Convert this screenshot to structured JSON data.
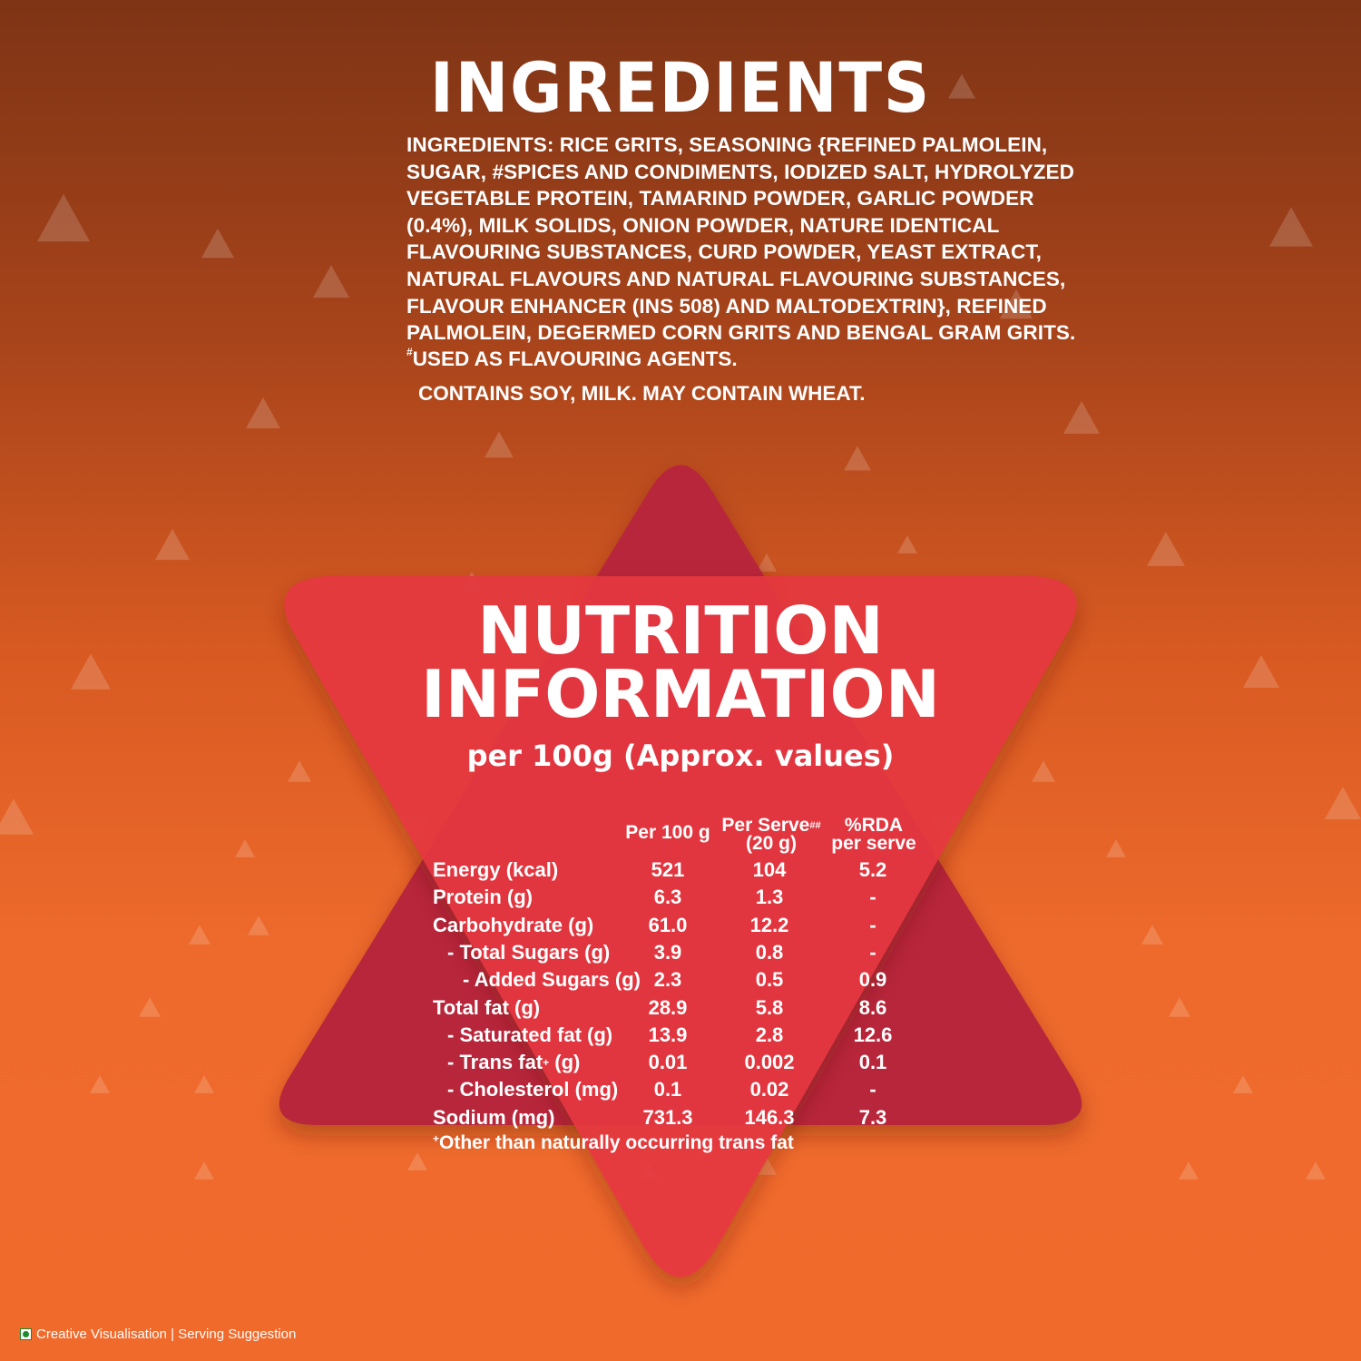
{
  "ingredients": {
    "title": "INGREDIENTS",
    "lines": [
      "INGREDIENTS: RICE GRITS, SEASONING {REFINED PALMOLEIN,",
      "SUGAR, #SPICES AND CONDIMENTS, IODIZED SALT, HYDROLYZED",
      "VEGETABLE PROTEIN, TAMARIND POWDER, GARLIC POWDER",
      "(0.4%), MILK SOLIDS, ONION POWDER, NATURE IDENTICAL",
      "FLAVOURING SUBSTANCES, CURD POWDER, YEAST  EXTRACT,",
      "NATURAL FLAVOURS AND NATURAL FLAVOURING SUBSTANCES,",
      "FLAVOUR ENHANCER (INS 508) AND MALTODEXTRIN}, REFINED",
      "PALMOLEIN, DEGERMED CORN GRITS AND BENGAL GRAM GRITS."
    ],
    "note_mark": "#",
    "note_text": "USED AS FLAVOURING AGENTS.",
    "contains": "CONTAINS SOY, MILK.  MAY CONTAIN WHEAT."
  },
  "nutrition": {
    "title_line1": "NUTRITION",
    "title_line2": "INFORMATION",
    "subtitle": "per 100g (Approx. values)",
    "columns": {
      "per100_line1": "Per 100 g",
      "serve_line1": "Per Serve",
      "serve_mark": "##",
      "serve_line2": "(20 g)",
      "rda_line1": "%RDA",
      "rda_line2": "per serve"
    },
    "rows": [
      {
        "label": "Energy (kcal)",
        "indent": 0,
        "per100": "521",
        "serve": "104",
        "rda": "5.2"
      },
      {
        "label": "Protein (g)",
        "indent": 0,
        "per100": "6.3",
        "serve": "1.3",
        "rda": "-"
      },
      {
        "label": "Carbohydrate (g)",
        "indent": 0,
        "per100": "61.0",
        "serve": "12.2",
        "rda": "-"
      },
      {
        "label": "- Total Sugars (g)",
        "indent": 1,
        "per100": "3.9",
        "serve": "0.8",
        "rda": "-"
      },
      {
        "label": "- Added Sugars (g)",
        "indent": 2,
        "per100": "2.3",
        "serve": "0.5",
        "rda": "0.9"
      },
      {
        "label": "Total fat (g)",
        "indent": 0,
        "per100": "28.9",
        "serve": "5.8",
        "rda": "8.6"
      },
      {
        "label": "- Saturated fat (g)",
        "indent": 1,
        "per100": "13.9",
        "serve": "2.8",
        "rda": "12.6"
      },
      {
        "label": "- Trans fat",
        "label_mark": "+",
        "label_suffix": " (g)",
        "indent": 1,
        "per100": "0.01",
        "serve": "0.002",
        "rda": "0.1"
      },
      {
        "label": "- Cholesterol (mg)",
        "indent": 1,
        "per100": "0.1",
        "serve": "0.02",
        "rda": "-"
      },
      {
        "label": "Sodium (mg)",
        "indent": 0,
        "per100": "731.3",
        "serve": "146.3",
        "rda": "7.3"
      }
    ],
    "footnote_mark": "+",
    "footnote_text": "Other than naturally occurring trans fat"
  },
  "footer": {
    "veg_icon": "veg-mark-icon",
    "text": "Creative Visualisation | Serving Suggestion"
  },
  "colors": {
    "background_top": "#7e3415",
    "background_bottom": "#f06a2c",
    "chip_red": "#e5373f",
    "chip_dark_red": "#b8283a",
    "text": "#ffffff"
  }
}
